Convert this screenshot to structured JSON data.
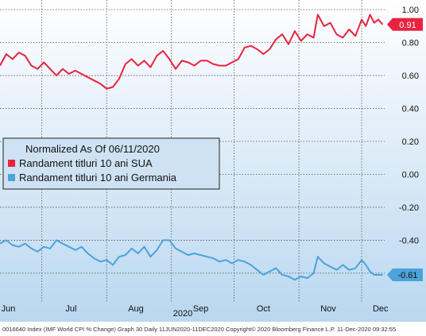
{
  "chart_data": {
    "type": "line",
    "title": "",
    "xlabel": "",
    "ylabel": "",
    "year_label": "2020",
    "legend": {
      "header": "Normalized As Of 06/11/2020",
      "placement": "middle-left"
    },
    "ylim": [
      -0.75,
      1.02
    ],
    "y_ticks": [
      1.0,
      0.8,
      0.6,
      0.4,
      0.2,
      0.0,
      -0.2,
      -0.4,
      -0.6
    ],
    "y_tick_labels": [
      "1.00",
      "0.80",
      "0.60",
      "0.40",
      "0.20",
      "0.00",
      "-0.20",
      "-0.40",
      "-0.60"
    ],
    "x_start_date": "2020-06-11",
    "x_end_date": "2020-12-11",
    "x_month_labels": [
      {
        "label": "Jun",
        "date": "2020-06-15"
      },
      {
        "label": "Jul",
        "date": "2020-07-15"
      },
      {
        "label": "Aug",
        "date": "2020-08-15"
      },
      {
        "label": "Sep",
        "date": "2020-09-15"
      },
      {
        "label": "Oct",
        "date": "2020-10-15"
      },
      {
        "label": "Nov",
        "date": "2020-11-15"
      },
      {
        "label": "Dec",
        "date": "2020-12-10"
      }
    ],
    "x_gridlines": [
      "2020-07-01",
      "2020-08-01",
      "2020-09-01",
      "2020-10-01",
      "2020-11-01",
      "2020-12-01"
    ],
    "grid": true,
    "series": [
      {
        "name": "Randament titluri 10 ani SUA",
        "color": "#e8233f",
        "last_value_label": "0.91",
        "points": [
          [
            "2020-06-11",
            0.66
          ],
          [
            "2020-06-14",
            0.73
          ],
          [
            "2020-06-17",
            0.7
          ],
          [
            "2020-06-20",
            0.74
          ],
          [
            "2020-06-23",
            0.72
          ],
          [
            "2020-06-26",
            0.66
          ],
          [
            "2020-06-29",
            0.64
          ],
          [
            "2020-07-02",
            0.68
          ],
          [
            "2020-07-05",
            0.64
          ],
          [
            "2020-07-08",
            0.6
          ],
          [
            "2020-07-11",
            0.64
          ],
          [
            "2020-07-14",
            0.61
          ],
          [
            "2020-07-17",
            0.63
          ],
          [
            "2020-07-20",
            0.61
          ],
          [
            "2020-07-23",
            0.59
          ],
          [
            "2020-07-26",
            0.57
          ],
          [
            "2020-07-29",
            0.55
          ],
          [
            "2020-08-01",
            0.52
          ],
          [
            "2020-08-04",
            0.53
          ],
          [
            "2020-08-07",
            0.58
          ],
          [
            "2020-08-10",
            0.67
          ],
          [
            "2020-08-13",
            0.7
          ],
          [
            "2020-08-16",
            0.66
          ],
          [
            "2020-08-19",
            0.69
          ],
          [
            "2020-08-22",
            0.65
          ],
          [
            "2020-08-25",
            0.72
          ],
          [
            "2020-08-28",
            0.75
          ],
          [
            "2020-08-31",
            0.7
          ],
          [
            "2020-09-03",
            0.64
          ],
          [
            "2020-09-06",
            0.69
          ],
          [
            "2020-09-09",
            0.68
          ],
          [
            "2020-09-12",
            0.66
          ],
          [
            "2020-09-15",
            0.69
          ],
          [
            "2020-09-18",
            0.69
          ],
          [
            "2020-09-21",
            0.67
          ],
          [
            "2020-09-24",
            0.66
          ],
          [
            "2020-09-27",
            0.66
          ],
          [
            "2020-09-30",
            0.68
          ],
          [
            "2020-10-03",
            0.7
          ],
          [
            "2020-10-06",
            0.77
          ],
          [
            "2020-10-09",
            0.78
          ],
          [
            "2020-10-12",
            0.76
          ],
          [
            "2020-10-15",
            0.73
          ],
          [
            "2020-10-18",
            0.76
          ],
          [
            "2020-10-21",
            0.82
          ],
          [
            "2020-10-24",
            0.85
          ],
          [
            "2020-10-27",
            0.79
          ],
          [
            "2020-10-30",
            0.87
          ],
          [
            "2020-11-02",
            0.81
          ],
          [
            "2020-11-05",
            0.85
          ],
          [
            "2020-11-08",
            0.83
          ],
          [
            "2020-11-10",
            0.97
          ],
          [
            "2020-11-13",
            0.9
          ],
          [
            "2020-11-16",
            0.92
          ],
          [
            "2020-11-19",
            0.85
          ],
          [
            "2020-11-22",
            0.83
          ],
          [
            "2020-11-25",
            0.88
          ],
          [
            "2020-11-28",
            0.84
          ],
          [
            "2020-12-01",
            0.94
          ],
          [
            "2020-12-03",
            0.9
          ],
          [
            "2020-12-05",
            0.97
          ],
          [
            "2020-12-07",
            0.92
          ],
          [
            "2020-12-09",
            0.94
          ],
          [
            "2020-12-11",
            0.91
          ]
        ]
      },
      {
        "name": "Randament titluri 10 ani Germania",
        "color": "#4ba3d9",
        "last_value_label": "-0.61",
        "points": [
          [
            "2020-06-11",
            -0.42
          ],
          [
            "2020-06-14",
            -0.4
          ],
          [
            "2020-06-17",
            -0.43
          ],
          [
            "2020-06-20",
            -0.44
          ],
          [
            "2020-06-23",
            -0.42
          ],
          [
            "2020-06-26",
            -0.45
          ],
          [
            "2020-06-29",
            -0.47
          ],
          [
            "2020-07-02",
            -0.44
          ],
          [
            "2020-07-05",
            -0.45
          ],
          [
            "2020-07-08",
            -0.4
          ],
          [
            "2020-07-11",
            -0.42
          ],
          [
            "2020-07-14",
            -0.44
          ],
          [
            "2020-07-17",
            -0.46
          ],
          [
            "2020-07-20",
            -0.44
          ],
          [
            "2020-07-23",
            -0.48
          ],
          [
            "2020-07-26",
            -0.51
          ],
          [
            "2020-07-29",
            -0.53
          ],
          [
            "2020-08-01",
            -0.52
          ],
          [
            "2020-08-04",
            -0.55
          ],
          [
            "2020-08-07",
            -0.5
          ],
          [
            "2020-08-10",
            -0.49
          ],
          [
            "2020-08-13",
            -0.45
          ],
          [
            "2020-08-16",
            -0.48
          ],
          [
            "2020-08-19",
            -0.44
          ],
          [
            "2020-08-22",
            -0.5
          ],
          [
            "2020-08-25",
            -0.46
          ],
          [
            "2020-08-28",
            -0.4
          ],
          [
            "2020-08-31",
            -0.4
          ],
          [
            "2020-09-03",
            -0.45
          ],
          [
            "2020-09-06",
            -0.47
          ],
          [
            "2020-09-09",
            -0.49
          ],
          [
            "2020-09-12",
            -0.48
          ],
          [
            "2020-09-15",
            -0.49
          ],
          [
            "2020-09-18",
            -0.5
          ],
          [
            "2020-09-21",
            -0.51
          ],
          [
            "2020-09-24",
            -0.53
          ],
          [
            "2020-09-27",
            -0.52
          ],
          [
            "2020-09-30",
            -0.54
          ],
          [
            "2020-10-03",
            -0.52
          ],
          [
            "2020-10-06",
            -0.53
          ],
          [
            "2020-10-09",
            -0.55
          ],
          [
            "2020-10-12",
            -0.58
          ],
          [
            "2020-10-15",
            -0.61
          ],
          [
            "2020-10-18",
            -0.59
          ],
          [
            "2020-10-21",
            -0.57
          ],
          [
            "2020-10-24",
            -0.61
          ],
          [
            "2020-10-27",
            -0.62
          ],
          [
            "2020-10-30",
            -0.64
          ],
          [
            "2020-11-02",
            -0.62
          ],
          [
            "2020-11-05",
            -0.63
          ],
          [
            "2020-11-08",
            -0.6
          ],
          [
            "2020-11-10",
            -0.5
          ],
          [
            "2020-11-13",
            -0.54
          ],
          [
            "2020-11-16",
            -0.56
          ],
          [
            "2020-11-19",
            -0.58
          ],
          [
            "2020-11-22",
            -0.55
          ],
          [
            "2020-11-25",
            -0.58
          ],
          [
            "2020-11-28",
            -0.57
          ],
          [
            "2020-12-01",
            -0.52
          ],
          [
            "2020-12-03",
            -0.55
          ],
          [
            "2020-12-05",
            -0.59
          ],
          [
            "2020-12-07",
            -0.61
          ],
          [
            "2020-12-09",
            -0.61
          ],
          [
            "2020-12-11",
            -0.61
          ]
        ]
      }
    ]
  },
  "footer": {
    "text": "0016640 Index (IMF World CPI % Change) Graph 30  Daily 11JUN2020-11DEC2020  Copyright© 2020 Bloomberg Finance L.P.  11-Dec-2020 09:32:55"
  },
  "colors": {
    "plot_top": "#ffffff",
    "plot_bottom": "#b9d7f0",
    "grid": "#555555",
    "legend_bg": "#cfe2f3",
    "legend_border": "#222222"
  }
}
